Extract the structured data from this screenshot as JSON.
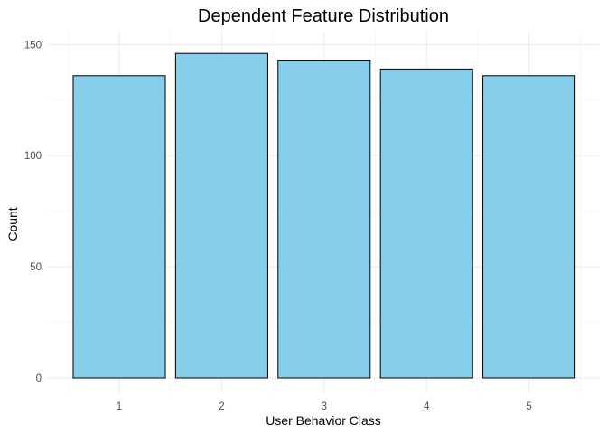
{
  "chart_data": {
    "type": "bar",
    "title": "Dependent Feature Distribution",
    "xlabel": "User Behavior Class",
    "ylabel": "Count",
    "categories": [
      "1",
      "2",
      "3",
      "4",
      "5"
    ],
    "values": [
      136,
      146,
      143,
      139,
      136
    ],
    "ylim": [
      0,
      153
    ],
    "yticks": [
      0,
      50,
      100,
      150
    ],
    "grid": true,
    "bar_fill": "#87CEEB",
    "bar_stroke": "#000000"
  }
}
